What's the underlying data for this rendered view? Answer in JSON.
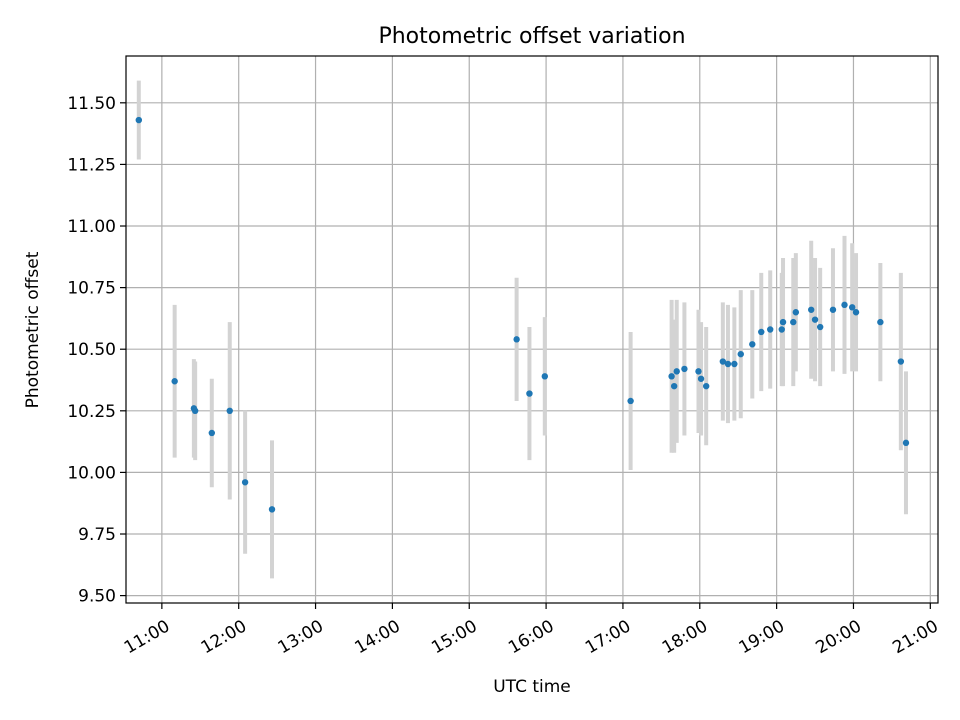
{
  "chart_data": {
    "type": "scatter",
    "title": "Photometric offset variation",
    "xlabel": "UTC time",
    "ylabel": "Photometric offset",
    "x_ticks": [
      "11:00",
      "12:00",
      "13:00",
      "14:00",
      "15:00",
      "16:00",
      "17:00",
      "18:00",
      "19:00",
      "20:00",
      "21:00"
    ],
    "y_ticks": [
      "9.50",
      "9.75",
      "10.00",
      "10.25",
      "10.50",
      "10.75",
      "11.00",
      "11.25",
      "11.50"
    ],
    "xlim": [
      "10:32",
      "21:06"
    ],
    "ylim": [
      9.47,
      11.69
    ],
    "grid": true,
    "colors": {
      "point": "#1f77b4",
      "errorbar": "#d3d3d3",
      "grid": "#b0b0b0"
    },
    "points": [
      {
        "x": "10:42",
        "y": 11.43,
        "err": 0.16
      },
      {
        "x": "11:10",
        "y": 10.37,
        "err": 0.31
      },
      {
        "x": "11:25",
        "y": 10.26,
        "err": 0.2
      },
      {
        "x": "11:26",
        "y": 10.25,
        "err": 0.2
      },
      {
        "x": "11:39",
        "y": 10.16,
        "err": 0.22
      },
      {
        "x": "11:53",
        "y": 10.25,
        "err": 0.36
      },
      {
        "x": "12:05",
        "y": 9.96,
        "err": 0.29
      },
      {
        "x": "12:26",
        "y": 9.85,
        "err": 0.28
      },
      {
        "x": "15:37",
        "y": 10.54,
        "err": 0.25
      },
      {
        "x": "15:47",
        "y": 10.32,
        "err": 0.27
      },
      {
        "x": "15:59",
        "y": 10.39,
        "err": 0.24
      },
      {
        "x": "17:06",
        "y": 10.29,
        "err": 0.28
      },
      {
        "x": "17:38",
        "y": 10.39,
        "err": 0.31
      },
      {
        "x": "17:40",
        "y": 10.35,
        "err": 0.27
      },
      {
        "x": "17:42",
        "y": 10.41,
        "err": 0.29
      },
      {
        "x": "17:48",
        "y": 10.42,
        "err": 0.27
      },
      {
        "x": "17:59",
        "y": 10.41,
        "err": 0.25
      },
      {
        "x": "18:01",
        "y": 10.38,
        "err": 0.23
      },
      {
        "x": "18:05",
        "y": 10.35,
        "err": 0.24
      },
      {
        "x": "18:18",
        "y": 10.45,
        "err": 0.24
      },
      {
        "x": "18:22",
        "y": 10.44,
        "err": 0.24
      },
      {
        "x": "18:27",
        "y": 10.44,
        "err": 0.23
      },
      {
        "x": "18:32",
        "y": 10.48,
        "err": 0.26
      },
      {
        "x": "18:41",
        "y": 10.52,
        "err": 0.22
      },
      {
        "x": "18:48",
        "y": 10.57,
        "err": 0.24
      },
      {
        "x": "18:55",
        "y": 10.58,
        "err": 0.24
      },
      {
        "x": "19:04",
        "y": 10.58,
        "err": 0.23
      },
      {
        "x": "19:05",
        "y": 10.61,
        "err": 0.26
      },
      {
        "x": "19:13",
        "y": 10.61,
        "err": 0.26
      },
      {
        "x": "19:15",
        "y": 10.65,
        "err": 0.24
      },
      {
        "x": "19:27",
        "y": 10.66,
        "err": 0.28
      },
      {
        "x": "19:30",
        "y": 10.62,
        "err": 0.25
      },
      {
        "x": "19:34",
        "y": 10.59,
        "err": 0.24
      },
      {
        "x": "19:44",
        "y": 10.66,
        "err": 0.25
      },
      {
        "x": "19:53",
        "y": 10.68,
        "err": 0.28
      },
      {
        "x": "19:59",
        "y": 10.67,
        "err": 0.26
      },
      {
        "x": "20:02",
        "y": 10.65,
        "err": 0.24
      },
      {
        "x": "20:21",
        "y": 10.61,
        "err": 0.24
      },
      {
        "x": "20:37",
        "y": 10.45,
        "err": 0.36
      },
      {
        "x": "20:41",
        "y": 10.12,
        "err": 0.29
      }
    ]
  }
}
